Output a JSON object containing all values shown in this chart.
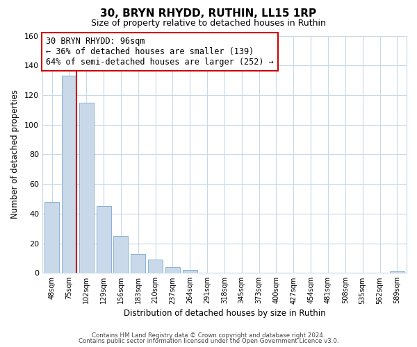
{
  "title": "30, BRYN RHYDD, RUTHIN, LL15 1RP",
  "subtitle": "Size of property relative to detached houses in Ruthin",
  "xlabel": "Distribution of detached houses by size in Ruthin",
  "ylabel": "Number of detached properties",
  "bar_labels": [
    "48sqm",
    "75sqm",
    "102sqm",
    "129sqm",
    "156sqm",
    "183sqm",
    "210sqm",
    "237sqm",
    "264sqm",
    "291sqm",
    "318sqm",
    "345sqm",
    "373sqm",
    "400sqm",
    "427sqm",
    "454sqm",
    "481sqm",
    "508sqm",
    "535sqm",
    "562sqm",
    "589sqm"
  ],
  "bar_values": [
    48,
    133,
    115,
    45,
    25,
    13,
    9,
    4,
    2,
    0,
    0,
    0,
    0,
    0,
    0,
    0,
    0,
    0,
    0,
    0,
    1
  ],
  "bar_color": "#c9d9ea",
  "bar_edge_color": "#7aa8cc",
  "highlight_line_color": "#cc0000",
  "ylim": [
    0,
    160
  ],
  "yticks": [
    0,
    20,
    40,
    60,
    80,
    100,
    120,
    140,
    160
  ],
  "annotation_line1": "30 BRYN RHYDD: 96sqm",
  "annotation_line2": "← 36% of detached houses are smaller (139)",
  "annotation_line3": "64% of semi-detached houses are larger (252) →",
  "footer_line1": "Contains HM Land Registry data © Crown copyright and database right 2024.",
  "footer_line2": "Contains public sector information licensed under the Open Government Licence v3.0.",
  "background_color": "#ffffff",
  "grid_color": "#c8d8e8"
}
